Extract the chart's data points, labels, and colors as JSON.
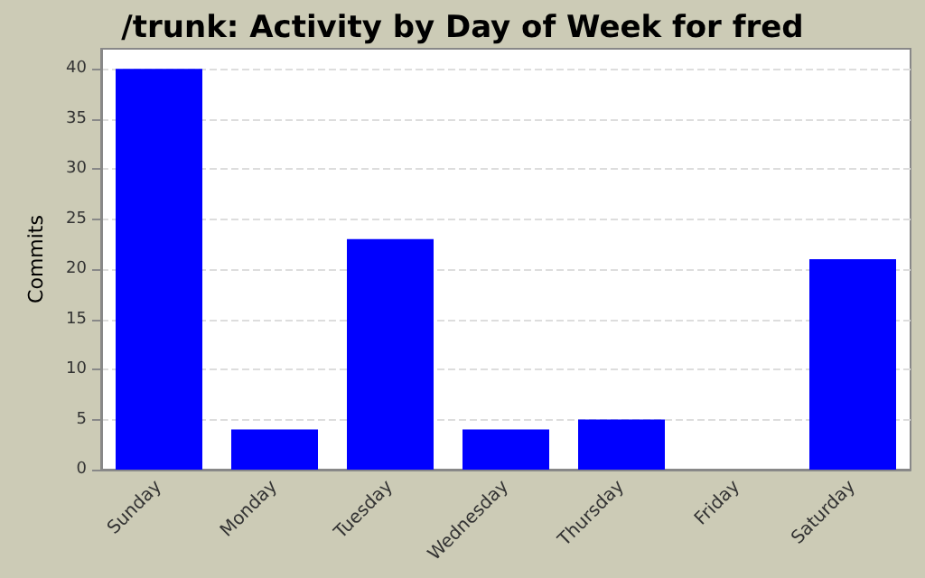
{
  "chart_data": {
    "type": "bar",
    "title": "/trunk: Activity by Day of Week for fred",
    "ylabel": "Commits",
    "categories": [
      "Sunday",
      "Monday",
      "Tuesday",
      "Wednesday",
      "Thursday",
      "Friday",
      "Saturday"
    ],
    "values": [
      40,
      4,
      23,
      4,
      5,
      0,
      21
    ],
    "color": "#0000ff",
    "ylim": [
      0,
      42
    ],
    "yticks": [
      0,
      5,
      10,
      15,
      20,
      25,
      30,
      35,
      40
    ],
    "grid": "y"
  }
}
